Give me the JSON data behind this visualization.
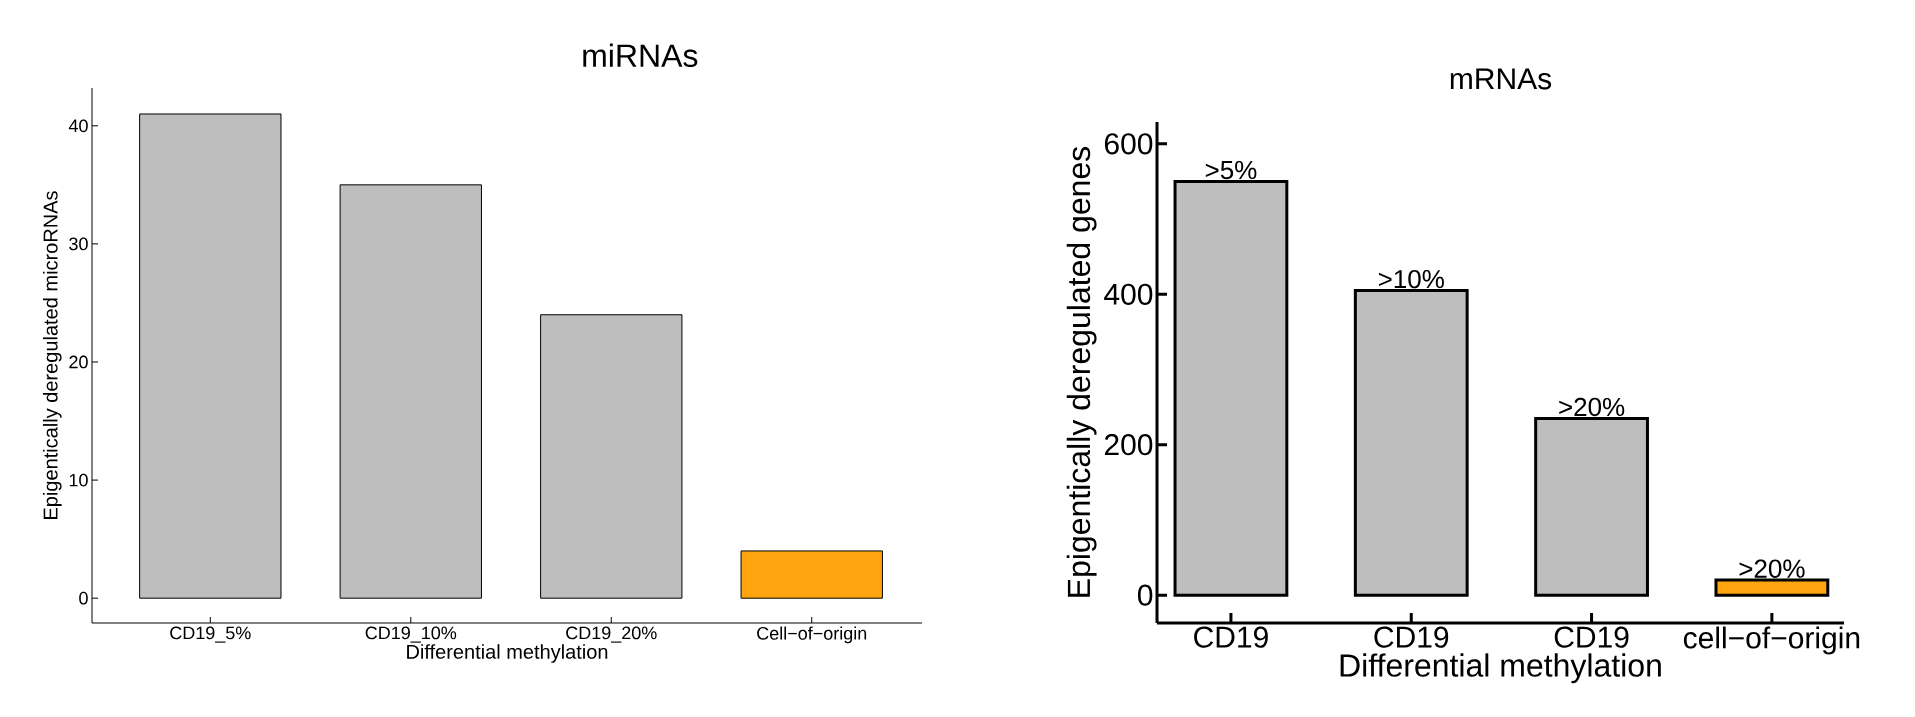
{
  "chart_data": [
    {
      "type": "bar",
      "title": "miRNAs",
      "xlabel": "Differential methylation",
      "ylabel": "Epigentically deregulated microRNAs",
      "categories": [
        "CD19_5%",
        "CD19_10%",
        "CD19_20%",
        "Cell−of−origin"
      ],
      "values": [
        41,
        35,
        24,
        4
      ],
      "colors": [
        "#bebebe",
        "#bebebe",
        "#bebebe",
        "#ffa510"
      ],
      "ylim": [
        -2.1,
        43.2
      ],
      "yticks": [
        0,
        10,
        20,
        30,
        40
      ],
      "grid": false
    },
    {
      "type": "bar",
      "title": "mRNAs",
      "xlabel": "Differential methylation",
      "ylabel": "Epigentically deregulated genes",
      "categories": [
        "CD19",
        "CD19",
        "CD19",
        "cell−of−origin"
      ],
      "values": [
        550,
        405,
        235,
        20
      ],
      "value_labels": [
        ">5%",
        ">10%",
        ">20%",
        ">20%"
      ],
      "colors": [
        "#bebebe",
        "#bebebe",
        "#bebebe",
        "#ffa510"
      ],
      "ylim": [
        -37,
        629
      ],
      "yticks": [
        0,
        200,
        400,
        600
      ],
      "grid": false
    }
  ]
}
